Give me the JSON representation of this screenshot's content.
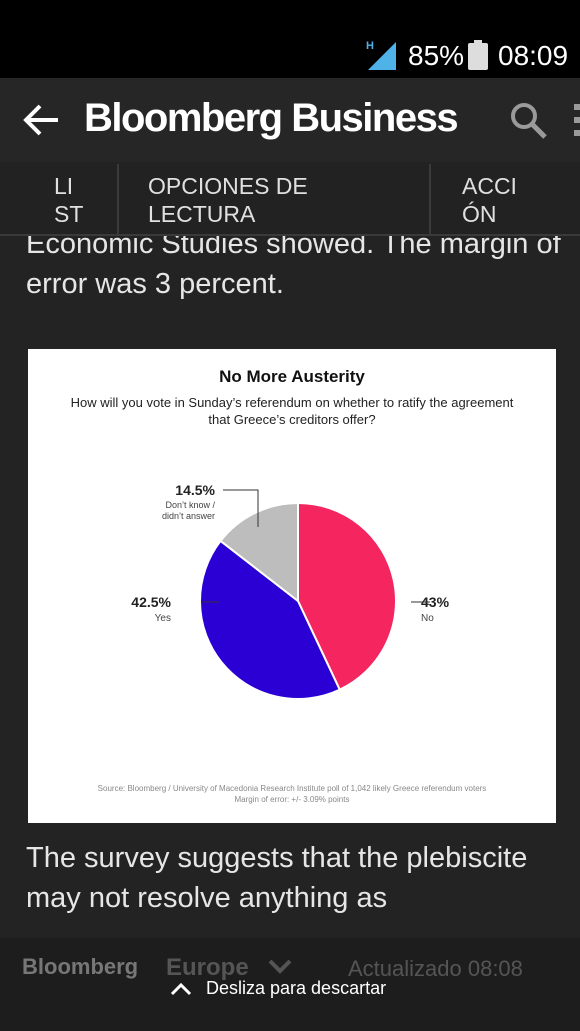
{
  "status_bar": {
    "battery_percent": "85%",
    "time": "08:09",
    "signal_icon": "signal-h-icon",
    "battery_icon": "battery-icon"
  },
  "app_bar": {
    "title": "Bloomberg Business",
    "back_icon": "back-arrow-icon",
    "search_icon": "search-icon",
    "overflow_icon": "overflow-menu-icon"
  },
  "reading_menu": {
    "list_label": "LI ST EN",
    "options_label": "OPCIONES DE LECTURA",
    "action_label": "ACCI ÓN"
  },
  "article": {
    "para_top": "Economic Studies showed. The margin of error was 3 percent.",
    "para_bottom": "The survey suggests that the plebiscite may not resolve anything as"
  },
  "chart_data": {
    "type": "pie",
    "title": "No More Austerity",
    "subtitle": "How will you vote in Sunday’s referendum on whether to ratify the agreement that Greece’s creditors offer?",
    "slices": [
      {
        "label": "No",
        "value": 43,
        "value_label": "43%",
        "color": "#f5255f"
      },
      {
        "label": "Yes",
        "value": 42.5,
        "value_label": "42.5%",
        "color": "#2b00d4"
      },
      {
        "label": "Don’t know / didn’t answer",
        "value": 14.5,
        "value_label": "14.5%",
        "color": "#bdbdbd"
      }
    ],
    "source": "Source: Bloomberg / University of Macedonia Research Institute poll of 1,042 likely Greece referendum voters",
    "margin": "Margin of error: +/- 3.09% points"
  },
  "footer": {
    "brand": "Bloomberg",
    "edition": "Europe",
    "updated": "Actualizado 08:08",
    "swipe_hint": "Desliza para descartar"
  },
  "colors": {
    "background": "#222222",
    "no": "#f5255f",
    "yes": "#2b00d4",
    "unknown": "#bdbdbd"
  }
}
